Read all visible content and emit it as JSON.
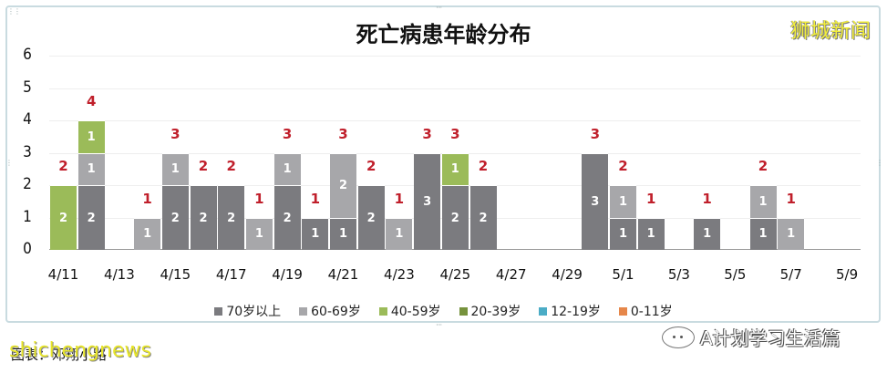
{
  "header": {
    "title": "死亡病患年龄分布",
    "brand": "狮城新闻"
  },
  "legend": [
    {
      "label": "70岁以上",
      "color": "#7b7b7f"
    },
    {
      "label": "60-69岁",
      "color": "#a7a7aa"
    },
    {
      "label": "40-59岁",
      "color": "#9bbb59"
    },
    {
      "label": "20-39岁",
      "color": "#76923c"
    },
    {
      "label": "12-19岁",
      "color": "#4bacc6"
    },
    {
      "label": "0-11岁",
      "color": "#e6874a"
    }
  ],
  "footer": {
    "caption": "图表：邓翔小路",
    "watermark": "shichengnews",
    "wechat_account": "A计划学习生活篇"
  },
  "colors": {
    "total_label": "#c01f2b"
  },
  "chart_data": {
    "type": "bar",
    "stacked": true,
    "title": "死亡病患年龄分布",
    "xlabel": "",
    "ylabel": "",
    "ylim": [
      0,
      6
    ],
    "yticks": [
      0,
      1,
      2,
      3,
      4,
      5,
      6
    ],
    "grid": true,
    "legend_position": "bottom",
    "categories": [
      "4/11",
      "4/12",
      "4/13",
      "4/14",
      "4/15",
      "4/16",
      "4/17",
      "4/18",
      "4/19",
      "4/20",
      "4/21",
      "4/22",
      "4/23",
      "4/24",
      "4/25",
      "4/26",
      "4/27",
      "4/28",
      "4/29",
      "4/30",
      "5/1",
      "5/2",
      "5/3",
      "5/4",
      "5/5",
      "5/6",
      "5/7",
      "5/8",
      "5/9"
    ],
    "xtick_labels": [
      "4/11",
      "4/13",
      "4/15",
      "4/17",
      "4/19",
      "4/21",
      "4/23",
      "4/25",
      "4/27",
      "4/29",
      "5/1",
      "5/3",
      "5/5",
      "5/7",
      "5/9"
    ],
    "series": [
      {
        "name": "70岁以上",
        "values": [
          0,
          2,
          0,
          0,
          2,
          2,
          2,
          0,
          2,
          1,
          1,
          2,
          0,
          3,
          2,
          2,
          0,
          0,
          0,
          3,
          1,
          1,
          0,
          1,
          0,
          1,
          0,
          0,
          0
        ]
      },
      {
        "name": "60-69岁",
        "values": [
          0,
          1,
          0,
          1,
          1,
          0,
          0,
          1,
          1,
          0,
          2,
          0,
          1,
          0,
          0,
          0,
          0,
          0,
          0,
          0,
          1,
          0,
          0,
          0,
          0,
          1,
          1,
          0,
          0
        ]
      },
      {
        "name": "40-59岁",
        "values": [
          2,
          1,
          0,
          0,
          0,
          0,
          0,
          0,
          0,
          0,
          0,
          0,
          0,
          0,
          1,
          0,
          0,
          0,
          0,
          0,
          0,
          0,
          0,
          0,
          0,
          0,
          0,
          0,
          0
        ]
      },
      {
        "name": "20-39岁",
        "values": [
          0,
          0,
          0,
          0,
          0,
          0,
          0,
          0,
          0,
          0,
          0,
          0,
          0,
          0,
          0,
          0,
          0,
          0,
          0,
          0,
          0,
          0,
          0,
          0,
          0,
          0,
          0,
          0,
          0
        ]
      },
      {
        "name": "12-19岁",
        "values": [
          0,
          0,
          0,
          0,
          0,
          0,
          0,
          0,
          0,
          0,
          0,
          0,
          0,
          0,
          0,
          0,
          0,
          0,
          0,
          0,
          0,
          0,
          0,
          0,
          0,
          0,
          0,
          0,
          0
        ]
      },
      {
        "name": "0-11岁",
        "values": [
          0,
          0,
          0,
          0,
          0,
          0,
          0,
          0,
          0,
          0,
          0,
          0,
          0,
          0,
          0,
          0,
          0,
          0,
          0,
          0,
          0,
          0,
          0,
          0,
          0,
          0,
          0,
          0,
          0
        ]
      }
    ],
    "totals": [
      2,
      4,
      0,
      1,
      3,
      2,
      2,
      1,
      3,
      1,
      3,
      2,
      1,
      3,
      3,
      2,
      0,
      0,
      0,
      3,
      2,
      1,
      0,
      1,
      0,
      2,
      1,
      0,
      0
    ]
  }
}
